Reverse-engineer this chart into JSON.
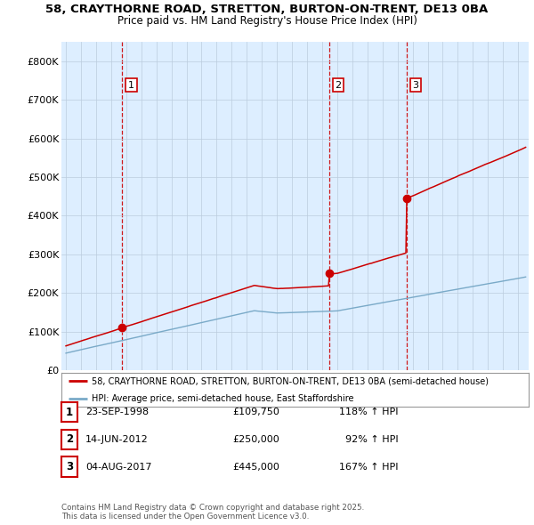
{
  "title_line1": "58, CRAYTHORNE ROAD, STRETTON, BURTON-ON-TRENT, DE13 0BA",
  "title_line2": "Price paid vs. HM Land Registry's House Price Index (HPI)",
  "ylim": [
    0,
    850000
  ],
  "yticks": [
    0,
    100000,
    200000,
    300000,
    400000,
    500000,
    600000,
    700000,
    800000
  ],
  "ytick_labels": [
    "£0",
    "£100K",
    "£200K",
    "£300K",
    "£400K",
    "£500K",
    "£600K",
    "£700K",
    "£800K"
  ],
  "xlim_start": 1994.7,
  "xlim_end": 2025.7,
  "sale_dates": [
    1998.73,
    2012.46,
    2017.59
  ],
  "sale_prices": [
    109750,
    250000,
    445000
  ],
  "sale_labels": [
    "1",
    "2",
    "3"
  ],
  "red_line_color": "#cc0000",
  "blue_line_color": "#7aaac8",
  "plot_bg_color": "#ddeeff",
  "vline_color": "#cc0000",
  "grid_color": "#bbccdd",
  "legend_entries": [
    "58, CRAYTHORNE ROAD, STRETTON, BURTON-ON-TRENT, DE13 0BA (semi-detached house)",
    "HPI: Average price, semi-detached house, East Staffordshire"
  ],
  "table_rows": [
    {
      "num": "1",
      "date": "23-SEP-1998",
      "price": "£109,750",
      "hpi": "118% ↑ HPI"
    },
    {
      "num": "2",
      "date": "14-JUN-2012",
      "price": "£250,000",
      "hpi": "  92% ↑ HPI"
    },
    {
      "num": "3",
      "date": "04-AUG-2017",
      "price": "£445,000",
      "hpi": "167% ↑ HPI"
    }
  ],
  "footnote": "Contains HM Land Registry data © Crown copyright and database right 2025.\nThis data is licensed under the Open Government Licence v3.0.",
  "background_color": "#ffffff"
}
